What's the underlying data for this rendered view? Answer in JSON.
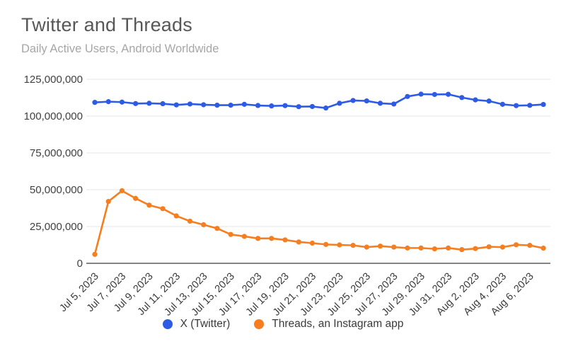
{
  "chart_data": {
    "type": "line",
    "title": "Twitter and Threads",
    "subtitle": "Daily Active Users, Android Worldwide",
    "x": [
      "Jul 5, 2023",
      "Jul 6, 2023",
      "Jul 7, 2023",
      "Jul 8, 2023",
      "Jul 9, 2023",
      "Jul 10, 2023",
      "Jul 11, 2023",
      "Jul 12, 2023",
      "Jul 13, 2023",
      "Jul 14, 2023",
      "Jul 15, 2023",
      "Jul 16, 2023",
      "Jul 17, 2023",
      "Jul 18, 2023",
      "Jul 19, 2023",
      "Jul 20, 2023",
      "Jul 21, 2023",
      "Jul 22, 2023",
      "Jul 23, 2023",
      "Jul 24, 2023",
      "Jul 25, 2023",
      "Jul 26, 2023",
      "Jul 27, 2023",
      "Jul 28, 2023",
      "Jul 29, 2023",
      "Jul 30, 2023",
      "Jul 31, 2023",
      "Aug 1, 2023",
      "Aug 2, 2023",
      "Aug 3, 2023",
      "Aug 4, 2023",
      "Aug 5, 2023",
      "Aug 6, 2023",
      "Aug 7, 2023"
    ],
    "x_tick_every": 2,
    "series": [
      {
        "name": "X (Twitter)",
        "color": "#2e5bе6",
        "values": [
          109300000,
          109800000,
          109500000,
          108500000,
          108700000,
          108400000,
          107600000,
          108200000,
          107700000,
          107400000,
          107400000,
          108000000,
          107200000,
          106900000,
          107100000,
          106400000,
          106500000,
          105500000,
          108700000,
          110600000,
          110300000,
          108700000,
          108200000,
          113300000,
          114900000,
          114700000,
          114800000,
          112600000,
          111000000,
          110200000,
          108000000,
          107100000,
          107300000,
          107900000
        ]
      },
      {
        "name": "Threads, an Instagram app",
        "color": "#f57e20",
        "values": [
          6100000,
          42000000,
          49300000,
          44100000,
          39500000,
          37100000,
          32200000,
          28600000,
          26200000,
          23700000,
          19600000,
          18300000,
          16900000,
          16900000,
          15900000,
          14500000,
          13700000,
          12800000,
          12500000,
          12200000,
          11000000,
          11700000,
          11000000,
          10400000,
          10400000,
          9800000,
          10400000,
          9300000,
          10000000,
          11200000,
          11000000,
          12600000,
          12200000,
          10300000
        ]
      }
    ],
    "ylim": [
      0,
      125000000
    ],
    "y_ticks": [
      {
        "value": 0,
        "label": "0"
      },
      {
        "value": 25000000,
        "label": "25,000,000"
      },
      {
        "value": 50000000,
        "label": "50,000,000"
      },
      {
        "value": 75000000,
        "label": "75,000,000"
      },
      {
        "value": 100000000,
        "label": "100,000,000"
      },
      {
        "value": 125000000,
        "label": "125,000,000"
      }
    ],
    "grid": true,
    "legend_position": "bottom-center"
  }
}
